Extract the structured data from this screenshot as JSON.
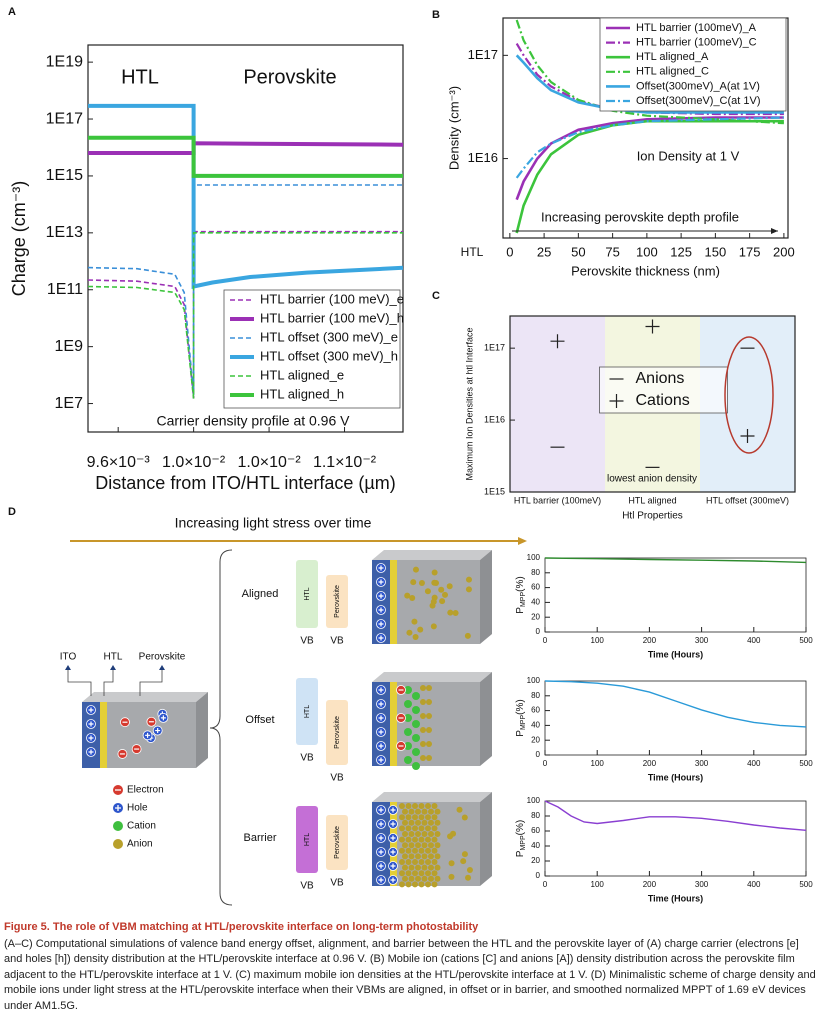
{
  "chart_data": [
    {
      "type": "line",
      "label": "A",
      "log_y": true,
      "legend": "lower right",
      "annotations": [
        "HTL",
        "Perovskite",
        "Carrier density profile at 0.96 V"
      ],
      "xlabel": "Distance from ITO/HTL interface (µm)",
      "ylabel": "Charge (cm⁻³)",
      "xlim": [
        0.00944,
        0.01111
      ],
      "ylim": [
        1000000.0,
        4e+19
      ],
      "xticks": [
        {
          "value": 0.0096,
          "label": "9.6×10⁻³"
        },
        {
          "value": 0.01,
          "label": "1.0×10⁻²"
        },
        {
          "value": 0.0104,
          "label": "1.0×10⁻²"
        },
        {
          "value": 0.0108,
          "label": "1.1×10⁻²"
        }
      ],
      "yticks": [
        {
          "value": 1e+19,
          "label": "1E19"
        },
        {
          "value": 1e+17,
          "label": "1E17"
        },
        {
          "value": 1000000000000000.0,
          "label": "1E15"
        },
        {
          "value": 10000000000000.0,
          "label": "1E13"
        },
        {
          "value": 100000000000.0,
          "label": "1E11"
        },
        {
          "value": 1000000000.0,
          "label": "1E9"
        },
        {
          "value": 10000000.0,
          "label": "1E7"
        }
      ],
      "series": [
        {
          "name": "HTL barrier (100 meV)_e",
          "color": "#9b30b5",
          "style": "dashed",
          "x": [
            0.00944,
            0.0097,
            0.0099,
            0.00995,
            0.01,
            0.01,
            0.01111
          ],
          "values": [
            220000000000.0,
            200000000000.0,
            130000000000.0,
            30000000000.0,
            15000000.0,
            11000000000000.0,
            11000000000000.0
          ]
        },
        {
          "name": "HTL barrier (100 meV)_h",
          "color": "#9b30b5",
          "style": "solid",
          "x": [
            0.00944,
            0.01,
            0.01,
            0.01111
          ],
          "values": [
            6400000000000000.0,
            6400000000000000.0,
            1.4e+16,
            1.25e+16
          ]
        },
        {
          "name": "HTL offset  (300 meV)_e",
          "color": "#3a8fd8",
          "style": "dashed",
          "x": [
            0.00944,
            0.0097,
            0.0099,
            0.00995,
            0.01,
            0.01,
            0.01111
          ],
          "values": [
            600000000000.0,
            550000000000.0,
            350000000000.0,
            80000000000.0,
            20000000.0,
            480000000000000.0,
            480000000000000.0
          ]
        },
        {
          "name": "HTL offset (300 meV)_h",
          "color": "#3aa6e0",
          "style": "solid",
          "x": [
            0.00944,
            0.01,
            0.01,
            0.0101,
            0.0103,
            0.0106,
            0.01111
          ],
          "values": [
            2.9e+17,
            2.9e+17,
            130000000000.0,
            180000000000.0,
            280000000000.0,
            400000000000.0,
            590000000000.0
          ]
        },
        {
          "name": "HTL aligned_e",
          "color": "#3cc43c",
          "style": "dashed",
          "x": [
            0.00944,
            0.0097,
            0.0099,
            0.00995,
            0.01,
            0.01,
            0.01111
          ],
          "values": [
            130000000000.0,
            120000000000.0,
            80000000000.0,
            20000000000.0,
            15000000.0,
            10000000000000.0,
            10000000000000.0
          ]
        },
        {
          "name": "HTL aligned_h",
          "color": "#3cc43c",
          "style": "solid",
          "x": [
            0.00944,
            0.01,
            0.01,
            0.01111
          ],
          "values": [
            2.2e+16,
            2.2e+16,
            1000000000000000.0,
            1000000000000000.0
          ]
        }
      ]
    },
    {
      "type": "line",
      "label": "B",
      "log_y": true,
      "legend": "upper right",
      "annotations": [
        "Ion Density at 1 V",
        "Increasing perovskite depth profile",
        "HTL"
      ],
      "xlabel": "Perovskite thickness (nm)",
      "ylabel": "Density (cm⁻³)",
      "xlim": [
        -5,
        203
      ],
      "ylim": [
        1700000000000000.0,
        2.3e+17
      ],
      "xticks": [
        0,
        25,
        50,
        75,
        100,
        125,
        150,
        175,
        200
      ],
      "yticks": [
        {
          "value": 1e+17,
          "label": "1E17"
        },
        {
          "value": 1e+16,
          "label": "1E16"
        }
      ],
      "series": [
        {
          "name": "HTL barrier (100meV)_A",
          "color": "#9b30b5",
          "style": "solid",
          "x": [
            5,
            10,
            20,
            30,
            50,
            75,
            100,
            150,
            200
          ],
          "values": [
            4000000000000000.0,
            6000000000000000.0,
            1e+16,
            1.4e+16,
            1.9e+16,
            2.2e+16,
            2.4e+16,
            2.5e+16,
            2.5e+16
          ]
        },
        {
          "name": "HTL barrier (100meV)_C",
          "color": "#9b30b5",
          "style": "dashdot",
          "x": [
            5,
            10,
            20,
            30,
            50,
            75,
            100,
            150,
            200
          ],
          "values": [
            1.3e+17,
            1e+17,
            6.5e+16,
            5e+16,
            3.6e+16,
            3e+16,
            2.8e+16,
            2.7e+16,
            2.7e+16
          ]
        },
        {
          "name": "HTL aligned_A",
          "color": "#3cc43c",
          "style": "solid",
          "x": [
            5,
            10,
            20,
            30,
            50,
            75,
            100,
            150,
            200
          ],
          "values": [
            1900000000000000.0,
            3500000000000000.0,
            7000000000000000.0,
            1.1e+16,
            1.7e+16,
            2.1e+16,
            2.3e+16,
            2.3e+16,
            2.3e+16
          ]
        },
        {
          "name": "HTL aligned_C",
          "color": "#3cc43c",
          "style": "dashdot",
          "x": [
            5,
            10,
            20,
            30,
            50,
            75,
            100,
            150,
            200
          ],
          "values": [
            2.2e+17,
            1.4e+17,
            8e+16,
            5.5e+16,
            3.7e+16,
            2.9e+16,
            2.6e+16,
            2.4e+16,
            2.2e+16
          ]
        },
        {
          "name": "Offset(300meV)_A(at 1V)",
          "color": "#3aa6e0",
          "style": "solid",
          "x": [
            5,
            10,
            20,
            30,
            50,
            75,
            100,
            150,
            200
          ],
          "values": [
            1e+17,
            8.5e+16,
            6e+16,
            4.6e+16,
            3.5e+16,
            3e+16,
            2.8e+16,
            2.8e+16,
            2.8e+16
          ]
        },
        {
          "name": "Offset(300meV)_C(at 1V)",
          "color": "#3aa6e0",
          "style": "dashdot",
          "x": [
            5,
            10,
            20,
            30,
            50,
            75,
            100,
            150,
            200
          ],
          "values": [
            6500000000000000.0,
            8000000000000000.0,
            1.15e+16,
            1.4e+16,
            1.8e+16,
            2.1e+16,
            2.3e+16,
            2.4e+16,
            2.5e+16
          ]
        }
      ]
    },
    {
      "type": "scatter",
      "label": "C",
      "log_y": true,
      "legend": "center",
      "annotations": [
        "lowest anion density"
      ],
      "xlabel": "Htl Properties",
      "ylabel": "Maximum Ion Densities at htl Interface",
      "categories": [
        "HTL barrier (100meV)",
        "HTL aligned",
        "HTL offset (300meV)"
      ],
      "band_colors": [
        "#ece5f6",
        "#f3f6e0",
        "#e2eef9"
      ],
      "ylim": [
        1000000000000000.0,
        2.8e+17
      ],
      "yticks": [
        {
          "value": 1000000000000000.0,
          "label": "1E15"
        },
        {
          "value": 1e+16,
          "label": "1E16"
        },
        {
          "value": 1e+17,
          "label": "1E17"
        }
      ],
      "series": [
        {
          "name": "Anions",
          "color": "#222222",
          "marker": "minus",
          "values": [
            4200000000000000.0,
            2200000000000000.0,
            1e+17
          ]
        },
        {
          "name": "Cations",
          "color": "#222222",
          "marker": "plus",
          "values": [
            1.25e+17,
            2e+17,
            6000000000000000.0
          ]
        }
      ]
    },
    {
      "type": "line",
      "xlabel": "Time (Hours)",
      "ylabel": "P",
      "ylabel_sub": "MPP",
      "ylabel_tail": "(%)",
      "xlim": [
        0,
        500
      ],
      "ylim": [
        0,
        100
      ],
      "xticks": [
        0,
        100,
        200,
        300,
        400,
        500
      ],
      "yticks": [
        0,
        20,
        40,
        60,
        80,
        100
      ],
      "series": [
        {
          "color": "#2e8b2e",
          "style": "solid",
          "x": [
            0,
            100,
            200,
            300,
            400,
            500
          ],
          "values": [
            100,
            99,
            98,
            97,
            96,
            94
          ]
        }
      ]
    },
    {
      "type": "line",
      "xlabel": "Time (Hours)",
      "ylabel": "P",
      "ylabel_sub": "MPP",
      "ylabel_tail": "(%)",
      "xlim": [
        0,
        500
      ],
      "ylim": [
        0,
        100
      ],
      "xticks": [
        0,
        100,
        200,
        300,
        400,
        500
      ],
      "yticks": [
        0,
        20,
        40,
        60,
        80,
        100
      ],
      "series": [
        {
          "color": "#2a9ad8",
          "style": "solid",
          "x": [
            0,
            50,
            100,
            150,
            200,
            250,
            300,
            350,
            400,
            450,
            500
          ],
          "values": [
            100,
            99,
            97,
            93,
            85,
            73,
            61,
            51,
            44,
            40,
            38
          ]
        }
      ]
    },
    {
      "type": "line",
      "xlabel": "Time (Hours)",
      "ylabel": "P",
      "ylabel_sub": "MPP",
      "ylabel_tail": "(%)",
      "xlim": [
        0,
        500
      ],
      "ylim": [
        0,
        100
      ],
      "xticks": [
        0,
        100,
        200,
        300,
        400,
        500
      ],
      "yticks": [
        0,
        20,
        40,
        60,
        80,
        100
      ],
      "series": [
        {
          "color": "#8a3fd1",
          "style": "solid",
          "x": [
            0,
            25,
            50,
            75,
            100,
            150,
            200,
            250,
            300,
            350,
            400,
            450,
            500
          ],
          "values": [
            100,
            92,
            80,
            72,
            70,
            74,
            79,
            79,
            77,
            73,
            68,
            64,
            61
          ]
        }
      ]
    }
  ],
  "diagram": {
    "label": "D",
    "arrow_text": "Increasing light stress over time",
    "device_labels": [
      "ITO",
      "HTL",
      "Perovskite"
    ],
    "legend": [
      "Electron",
      "Hole",
      "Cation",
      "Anion"
    ],
    "rows": [
      {
        "name": "Aligned",
        "bands": [
          "HTL",
          "Perovskite"
        ],
        "vb": [
          "VB",
          "VB"
        ]
      },
      {
        "name": "Offset",
        "bands": [
          "HTL",
          "Perovskite"
        ],
        "vb": [
          "VB",
          "VB"
        ]
      },
      {
        "name": "Barrier",
        "bands": [
          "HTL",
          "Perovskite"
        ],
        "vb": [
          "VB",
          "VB"
        ]
      }
    ]
  },
  "caption": {
    "title": "Figure 5. The role of VBM matching at HTL/perovskite interface on long-term photostability",
    "text": "(A–C) Computational simulations of valence band energy offset, alignment, and barrier between the HTL and the perovskite layer of (A) charge carrier (electrons [e] and holes [h]) density distribution at the HTL/perovskite interface at 0.96 V. (B) Mobile ion (cations [C] and anions [A]) density distribution across the perovskite film adjacent to the HTL/perovskite interface at 1 V. (C) maximum mobile ion densities at the HTL/perovskite interface at 1 V. (D) Minimalistic scheme of charge density and mobile ions under light stress at the HTL/perovskite interface when their VBMs are aligned, in offset or in barrier, and smoothed normalized MPPT of 1.69 eV devices under AM1.5G."
  }
}
